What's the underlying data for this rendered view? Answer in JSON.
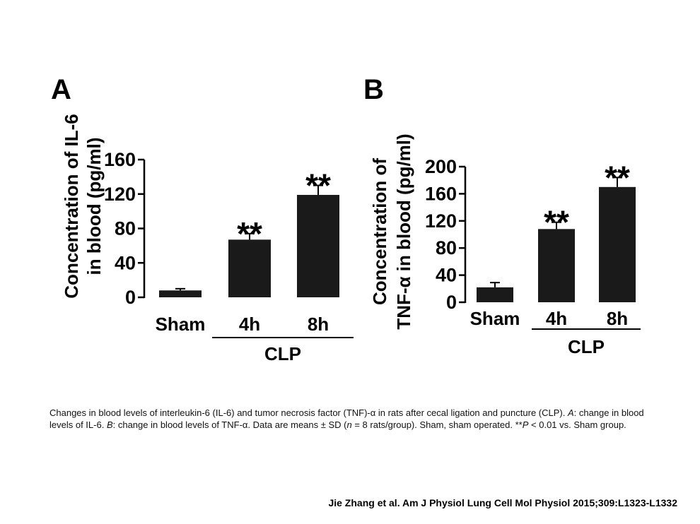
{
  "chart_data": [
    {
      "type": "bar",
      "panel_label": "A",
      "ylabel_line1": "Concentration of IL-6",
      "ylabel_line2": "in blood (pg/ml)",
      "categories": [
        "Sham",
        "4h",
        "8h"
      ],
      "values": [
        8,
        67,
        119
      ],
      "errors": [
        2,
        7,
        11
      ],
      "significance": [
        "",
        "**",
        "**"
      ],
      "yticks": [
        0,
        40,
        80,
        120,
        160
      ],
      "ylim": [
        0,
        160
      ],
      "group_label": "CLP",
      "bar_color": "#1a1a1a"
    },
    {
      "type": "bar",
      "panel_label": "B",
      "ylabel_line1": "Concentration of",
      "ylabel_line2": "TNF-α in blood (pg/ml)",
      "categories": [
        "Sham",
        "4h",
        "8h"
      ],
      "values": [
        22,
        108,
        170
      ],
      "errors": [
        7,
        10,
        14
      ],
      "significance": [
        "",
        "**",
        "**"
      ],
      "yticks": [
        0,
        40,
        80,
        120,
        160,
        200
      ],
      "ylim": [
        0,
        200
      ],
      "group_label": "CLP",
      "bar_color": "#1a1a1a"
    }
  ],
  "caption": {
    "p1": "Changes in blood levels of interleukin-6 (IL-6) and tumor necrosis factor (TNF)-α in rats after cecal ligation and puncture (CLP). ",
    "a_label": "A",
    "p2": ": change in blood levels of IL-6. ",
    "b_label": "B",
    "p3": ": change in blood levels of TNF-α. Data are means ± SD (",
    "n_label": "n",
    "p4": " = 8 rats/group). Sham, sham operated. **",
    "p_label": "P",
    "p5": " < 0.01 vs. Sham group."
  },
  "citation": "Jie Zhang et al. Am J Physiol Lung Cell Mol Physiol 2015;309:L1323-L1332"
}
